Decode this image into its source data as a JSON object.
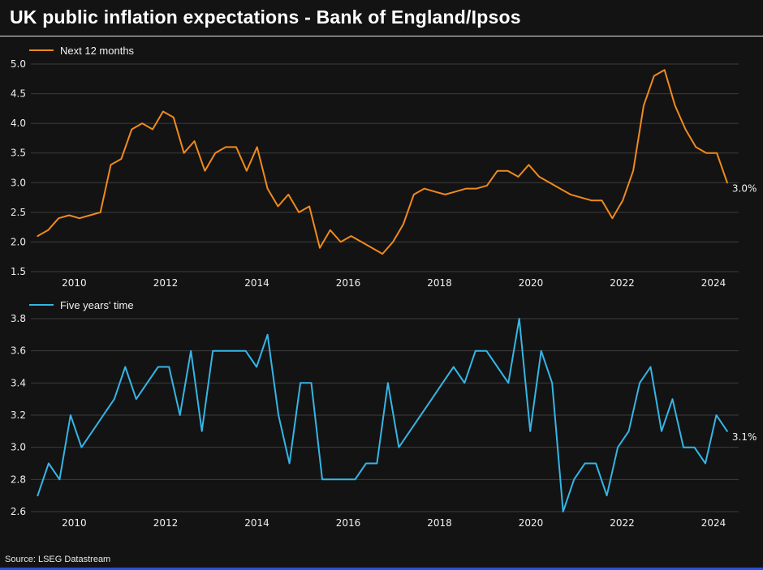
{
  "header": {
    "title": "UK public inflation expectations - Bank of England/Ipsos"
  },
  "footer": {
    "source": "Source: LSEG Datastream"
  },
  "colors": {
    "background": "#131313",
    "grid": "#3d3d3d",
    "text": "#f0f0f0",
    "orange": "#f08a1d",
    "cyan": "#35b5e5",
    "bottom_bar": "#2b50d8"
  },
  "chart_data": [
    {
      "type": "line",
      "legend": "Next 12 months",
      "end_label": "3.0%",
      "xlim": [
        2009.05,
        2024.55
      ],
      "x_data": [
        2009.2,
        2024.3
      ],
      "ylim": [
        1.5,
        5.0
      ],
      "yticks": [
        1.5,
        2.0,
        2.5,
        3.0,
        3.5,
        4.0,
        4.5,
        5.0
      ],
      "xticks": [
        2010,
        2012,
        2014,
        2016,
        2018,
        2020,
        2022,
        2024
      ],
      "series": [
        {
          "name": "Next 12 months",
          "color": "#f08a1d",
          "values": [
            2.1,
            2.2,
            2.4,
            2.45,
            2.4,
            2.45,
            2.5,
            3.3,
            3.4,
            3.9,
            4.0,
            3.9,
            4.2,
            4.1,
            3.5,
            3.7,
            3.2,
            3.5,
            3.6,
            3.6,
            3.2,
            3.6,
            2.9,
            2.6,
            2.8,
            2.5,
            2.6,
            1.9,
            2.2,
            2.0,
            2.1,
            2.0,
            1.9,
            1.8,
            2.0,
            2.3,
            2.8,
            2.9,
            2.85,
            2.8,
            2.85,
            2.9,
            2.9,
            2.95,
            3.2,
            3.2,
            3.1,
            3.3,
            3.1,
            3.0,
            2.9,
            2.8,
            2.75,
            2.7,
            2.7,
            2.4,
            2.7,
            3.2,
            4.3,
            4.8,
            4.9,
            4.3,
            3.9,
            3.6,
            3.5,
            3.5,
            3.0
          ]
        }
      ]
    },
    {
      "type": "line",
      "legend": "Five years' time",
      "end_label": "3.1%",
      "xlim": [
        2009.05,
        2024.55
      ],
      "x_data": [
        2009.2,
        2024.3
      ],
      "ylim": [
        2.6,
        3.8
      ],
      "yticks": [
        2.6,
        2.8,
        3.0,
        3.2,
        3.4,
        3.6,
        3.8
      ],
      "xticks": [
        2010,
        2012,
        2014,
        2016,
        2018,
        2020,
        2022,
        2024
      ],
      "series": [
        {
          "name": "Five years' time",
          "color": "#35b5e5",
          "values": [
            2.7,
            2.9,
            2.8,
            3.2,
            3.0,
            3.1,
            3.2,
            3.3,
            3.5,
            3.3,
            3.4,
            3.5,
            3.5,
            3.2,
            3.6,
            3.1,
            3.6,
            3.6,
            3.6,
            3.6,
            3.5,
            3.7,
            3.2,
            2.9,
            3.4,
            3.4,
            2.8,
            2.8,
            2.8,
            2.8,
            2.9,
            2.9,
            3.4,
            3.0,
            3.1,
            3.2,
            3.3,
            3.4,
            3.5,
            3.4,
            3.6,
            3.6,
            3.5,
            3.4,
            3.8,
            3.1,
            3.6,
            3.4,
            2.6,
            2.8,
            2.9,
            2.9,
            2.7,
            3.0,
            3.1,
            3.4,
            3.5,
            3.1,
            3.3,
            3.0,
            3.0,
            2.9,
            3.2,
            3.1
          ]
        }
      ]
    }
  ]
}
